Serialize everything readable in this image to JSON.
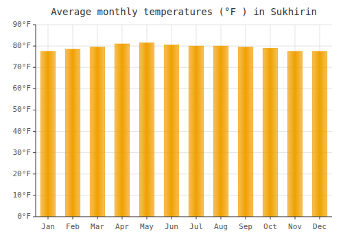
{
  "chart_data": {
    "type": "bar",
    "title": "Average monthly temperatures (°F ) in Sukhirin",
    "categories": [
      "Jan",
      "Feb",
      "Mar",
      "Apr",
      "May",
      "Jun",
      "Jul",
      "Aug",
      "Sep",
      "Oct",
      "Nov",
      "Dec"
    ],
    "values": [
      77.5,
      78.5,
      79.5,
      81.0,
      81.5,
      80.5,
      80.0,
      80.0,
      79.5,
      79.0,
      77.5,
      77.5
    ],
    "color": "#F0A000",
    "ylim": [
      0,
      90
    ],
    "yticks": [
      {
        "value": 0,
        "label": "0°F"
      },
      {
        "value": 10,
        "label": "10°F"
      },
      {
        "value": 20,
        "label": "20°F"
      },
      {
        "value": 30,
        "label": "30°F"
      },
      {
        "value": 40,
        "label": "40°F"
      },
      {
        "value": 50,
        "label": "50°F"
      },
      {
        "value": 60,
        "label": "60°F"
      },
      {
        "value": 70,
        "label": "70°F"
      },
      {
        "value": 80,
        "label": "80°F"
      },
      {
        "value": 90,
        "label": "90°F"
      }
    ],
    "grid": true
  }
}
